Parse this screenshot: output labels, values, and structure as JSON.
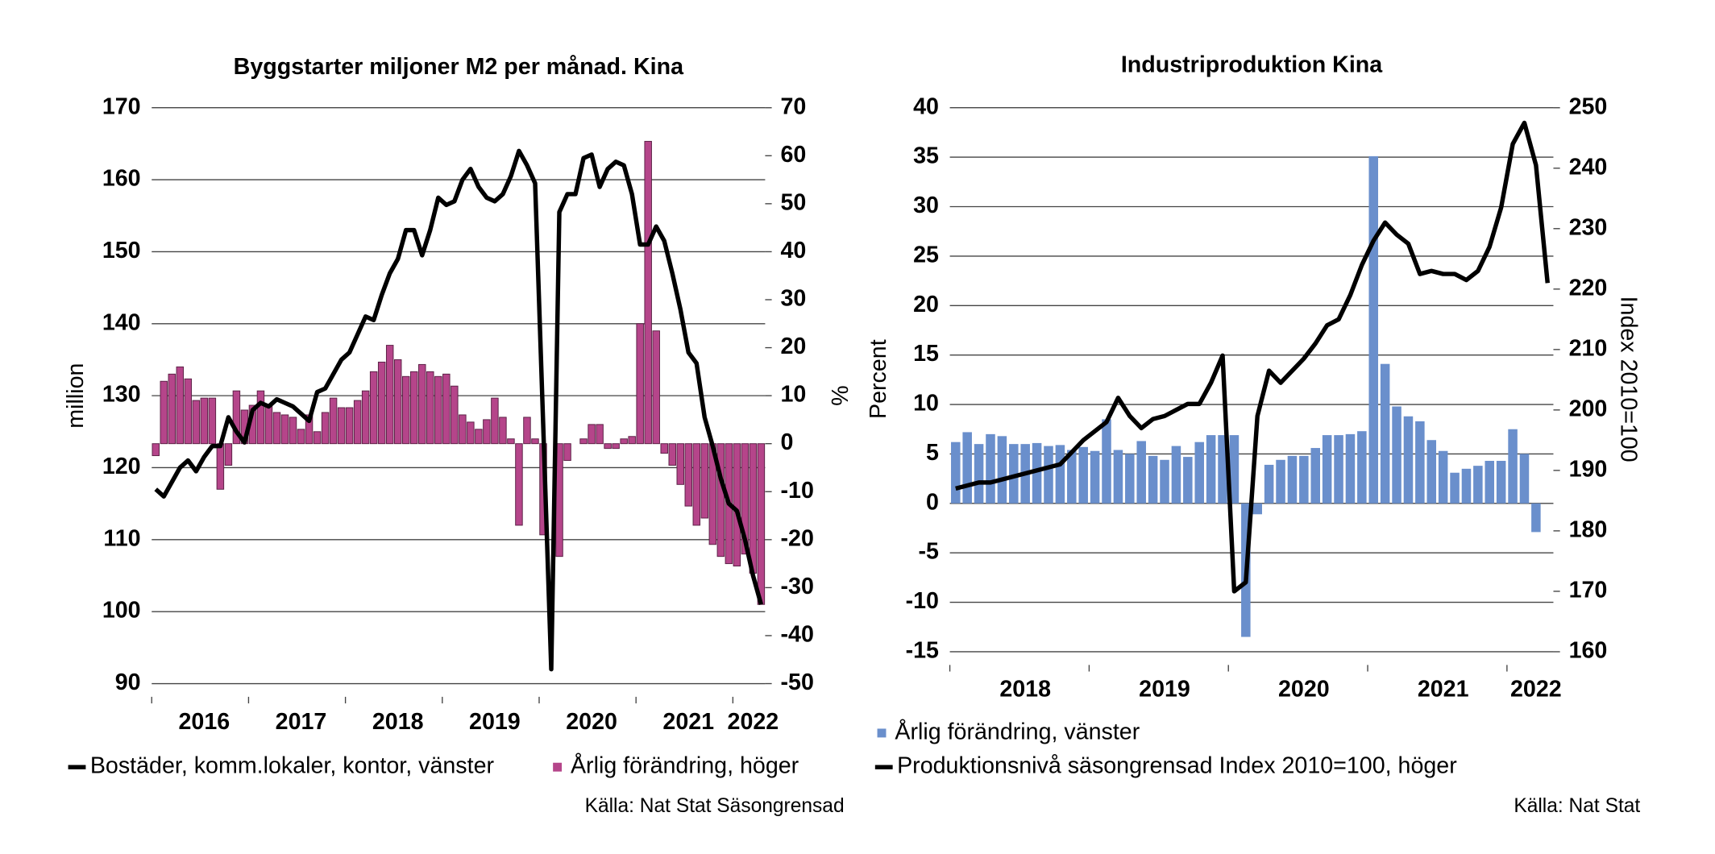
{
  "chart_data": [
    {
      "type": "bar_line",
      "title": "Byggstarter miljoner M2 per månad. Kina",
      "ylabel": "million",
      "y2label": "%",
      "source": "Källa: Nat Stat Säsongrensad",
      "categories": [
        null,
        null,
        null,
        null,
        null,
        null,
        "2016",
        null,
        null,
        null,
        null,
        null,
        null,
        null,
        null,
        null,
        null,
        null,
        "2017",
        null,
        null,
        null,
        null,
        null,
        null,
        null,
        null,
        null,
        null,
        null,
        "2018",
        null,
        null,
        null,
        null,
        null,
        null,
        null,
        null,
        null,
        null,
        null,
        "2019",
        null,
        null,
        null,
        null,
        null,
        null,
        null,
        null,
        null,
        null,
        null,
        "2020",
        null,
        null,
        null,
        null,
        null,
        null,
        null,
        null,
        null,
        null,
        null,
        "2021",
        null,
        null,
        null,
        null,
        null,
        null,
        null,
        "2022",
        null
      ],
      "series": [
        {
          "name": "Bostäder, komm.lokaler, kontor, vänster",
          "type": "line",
          "color": "#000000",
          "values": [
            117,
            116,
            118,
            120,
            121,
            119.5,
            121.5,
            123,
            123,
            127,
            125,
            123.5,
            128,
            129,
            128.5,
            129.5,
            129,
            128.5,
            127.5,
            126.5,
            130.5,
            131,
            133,
            135,
            136,
            138.5,
            141,
            140.5,
            144,
            147,
            149,
            153,
            153,
            149.5,
            153,
            157.5,
            156.5,
            157,
            160,
            161.5,
            159,
            157.5,
            157,
            158,
            160.5,
            164,
            162,
            159.5,
            126,
            92,
            155.5,
            158,
            158,
            163,
            163.5,
            159,
            161.5,
            162.5,
            162,
            158,
            151,
            151,
            153.5,
            151.5,
            147,
            142,
            136,
            134.5,
            127,
            123,
            118.5,
            115,
            114,
            110,
            105,
            101
          ]
        },
        {
          "name": "Årlig förändring, höger",
          "type": "bar",
          "axis": "y2",
          "color": "#b5458a",
          "values": [
            -2.5,
            13,
            14.5,
            16,
            13.5,
            9,
            9.5,
            9.5,
            -9.5,
            -4.5,
            11,
            7,
            8,
            11,
            8,
            6.5,
            6,
            5.5,
            3,
            6,
            2.5,
            6.5,
            9.5,
            7.5,
            7.5,
            9,
            11,
            15,
            17,
            20.5,
            17.5,
            14,
            15,
            16.5,
            15,
            14,
            14.5,
            12,
            6,
            4.5,
            3,
            5,
            9.5,
            5.5,
            1,
            -17,
            5.5,
            1,
            -19,
            null,
            -23.5,
            -3.5,
            0,
            1,
            4,
            4,
            -1,
            -1,
            1,
            1.5,
            25,
            63,
            23.5,
            -2,
            -4.5,
            -8.5,
            -13,
            -17,
            -15.5,
            -21,
            -23.5,
            -25,
            -25.5,
            -23,
            -27,
            -33.5
          ]
        }
      ],
      "ylim": [
        90,
        170
      ],
      "yticks": [
        90,
        100,
        110,
        120,
        130,
        140,
        150,
        160,
        170
      ],
      "y2lim": [
        -50,
        70
      ],
      "y2ticks": [
        -50,
        -40,
        -30,
        -20,
        -10,
        0,
        10,
        20,
        30,
        40,
        50,
        60,
        70
      ],
      "grid": true
    },
    {
      "type": "bar_line",
      "title": "Industriproduktion Kina",
      "ylabel": "Percent",
      "y2label": "Index 2010=100",
      "source": "Källa: Nat Stat",
      "categories": [
        null,
        null,
        null,
        null,
        null,
        null,
        "2018",
        null,
        null,
        null,
        null,
        null,
        null,
        null,
        null,
        null,
        null,
        null,
        "2019",
        null,
        null,
        null,
        null,
        null,
        null,
        null,
        null,
        null,
        null,
        null,
        "2020",
        null,
        null,
        null,
        null,
        null,
        null,
        null,
        null,
        null,
        null,
        null,
        "2021",
        null,
        null,
        null,
        null,
        null,
        null,
        null,
        "2022",
        null
      ],
      "series": [
        {
          "name": "Årlig förändring, vänster",
          "type": "bar",
          "color": "#6a8fcc",
          "values": [
            6.2,
            7.2,
            6,
            7,
            6.8,
            6,
            6,
            6.1,
            5.8,
            5.9,
            5.4,
            5.7,
            5.3,
            8.5,
            5.4,
            5,
            6.3,
            4.8,
            4.4,
            5.8,
            4.7,
            6.2,
            6.9,
            6.9,
            6.9,
            -13.5,
            -1.1,
            3.9,
            4.4,
            4.8,
            4.8,
            5.6,
            6.9,
            6.9,
            7,
            7.3,
            35.1,
            14.1,
            9.8,
            8.8,
            8.3,
            6.4,
            5.3,
            3.1,
            3.5,
            3.8,
            4.3,
            4.3,
            7.5,
            5,
            -2.9,
            null
          ]
        },
        {
          "name": "Produktionsnivå säsongrensad Index 2010=100, höger",
          "type": "line",
          "axis": "y2",
          "color": "#000000",
          "values": [
            187,
            187.5,
            188,
            188,
            188.5,
            189,
            189.5,
            190,
            190.5,
            191,
            193,
            195,
            196.5,
            198,
            202,
            199,
            197,
            198.5,
            199,
            200,
            201,
            201,
            204.5,
            209,
            170,
            171.5,
            199,
            206.5,
            204.5,
            206.5,
            208.5,
            211,
            214,
            215,
            219,
            224,
            228,
            231,
            229,
            227.5,
            222.5,
            223,
            222.5,
            222.5,
            221.5,
            223,
            227,
            233.5,
            244,
            247.5,
            240.5,
            221
          ]
        }
      ],
      "ylim": [
        -15,
        40
      ],
      "yticks": [
        -15,
        -10,
        -5,
        0,
        5,
        10,
        15,
        20,
        25,
        30,
        35,
        40
      ],
      "y2lim": [
        160,
        250
      ],
      "y2ticks": [
        160,
        170,
        180,
        190,
        200,
        210,
        220,
        230,
        240,
        250
      ],
      "grid": true
    }
  ]
}
